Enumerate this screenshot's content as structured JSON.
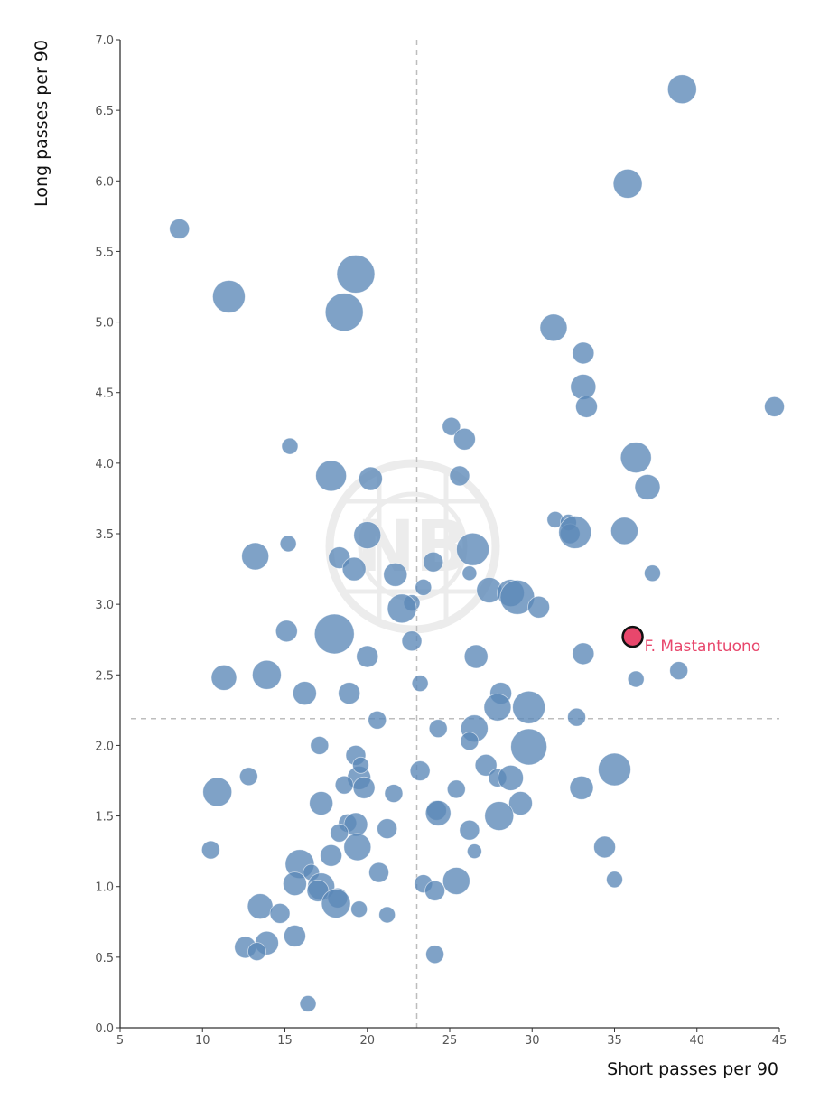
{
  "chart_data": {
    "type": "scatter",
    "xlabel": "Short passes per 90",
    "ylabel": "Long passes per 90",
    "xlim": [
      5,
      45
    ],
    "ylim": [
      0,
      7
    ],
    "xticks": [
      "5",
      "10",
      "15",
      "20",
      "25",
      "30",
      "35",
      "40",
      "45"
    ],
    "yticks": [
      "0.0",
      "0.5",
      "1.0",
      "1.5",
      "2.0",
      "2.5",
      "3.0",
      "3.5",
      "4.0",
      "4.5",
      "5.0",
      "5.5",
      "6.0",
      "6.5",
      "7.0"
    ],
    "reference_lines": {
      "x": 23,
      "y": 2.19
    },
    "watermark": "NB",
    "colors": {
      "points": "#5b88b7",
      "highlight": "#e8476c"
    },
    "highlight": {
      "label": "F. Mastantuono",
      "x": 36.1,
      "y": 2.77
    },
    "points": [
      {
        "x": 39.1,
        "y": 6.65,
        "size": 16
      },
      {
        "x": 35.8,
        "y": 5.98,
        "size": 16
      },
      {
        "x": 8.6,
        "y": 5.66,
        "size": 11
      },
      {
        "x": 11.6,
        "y": 5.18,
        "size": 18
      },
      {
        "x": 19.3,
        "y": 5.34,
        "size": 21
      },
      {
        "x": 18.6,
        "y": 5.07,
        "size": 21
      },
      {
        "x": 31.3,
        "y": 4.96,
        "size": 15
      },
      {
        "x": 33.1,
        "y": 4.78,
        "size": 12
      },
      {
        "x": 33.1,
        "y": 4.54,
        "size": 14
      },
      {
        "x": 33.3,
        "y": 4.4,
        "size": 12
      },
      {
        "x": 44.7,
        "y": 4.4,
        "size": 11
      },
      {
        "x": 25.1,
        "y": 4.26,
        "size": 10
      },
      {
        "x": 25.9,
        "y": 4.17,
        "size": 12
      },
      {
        "x": 15.3,
        "y": 4.12,
        "size": 9
      },
      {
        "x": 36.3,
        "y": 4.04,
        "size": 17
      },
      {
        "x": 17.8,
        "y": 3.91,
        "size": 17
      },
      {
        "x": 20.2,
        "y": 3.89,
        "size": 13
      },
      {
        "x": 25.6,
        "y": 3.91,
        "size": 11
      },
      {
        "x": 37.0,
        "y": 3.83,
        "size": 14
      },
      {
        "x": 31.4,
        "y": 3.6,
        "size": 9
      },
      {
        "x": 32.2,
        "y": 3.58,
        "size": 9
      },
      {
        "x": 32.3,
        "y": 3.5,
        "size": 11
      },
      {
        "x": 32.6,
        "y": 3.51,
        "size": 18
      },
      {
        "x": 35.6,
        "y": 3.52,
        "size": 15
      },
      {
        "x": 20.0,
        "y": 3.49,
        "size": 15
      },
      {
        "x": 15.2,
        "y": 3.43,
        "size": 9
      },
      {
        "x": 26.4,
        "y": 3.39,
        "size": 18
      },
      {
        "x": 13.2,
        "y": 3.34,
        "size": 15
      },
      {
        "x": 18.3,
        "y": 3.33,
        "size": 12
      },
      {
        "x": 19.2,
        "y": 3.25,
        "size": 13
      },
      {
        "x": 24.0,
        "y": 3.3,
        "size": 11
      },
      {
        "x": 21.7,
        "y": 3.21,
        "size": 13
      },
      {
        "x": 26.2,
        "y": 3.22,
        "size": 8
      },
      {
        "x": 37.3,
        "y": 3.22,
        "size": 9
      },
      {
        "x": 23.4,
        "y": 3.12,
        "size": 9
      },
      {
        "x": 27.4,
        "y": 3.1,
        "size": 14
      },
      {
        "x": 28.7,
        "y": 3.08,
        "size": 15
      },
      {
        "x": 29.1,
        "y": 3.05,
        "size": 19
      },
      {
        "x": 30.4,
        "y": 2.98,
        "size": 12
      },
      {
        "x": 22.7,
        "y": 3.01,
        "size": 9
      },
      {
        "x": 22.1,
        "y": 2.97,
        "size": 16
      },
      {
        "x": 15.1,
        "y": 2.81,
        "size": 12
      },
      {
        "x": 18.0,
        "y": 2.79,
        "size": 22
      },
      {
        "x": 22.7,
        "y": 2.74,
        "size": 11
      },
      {
        "x": 20.0,
        "y": 2.63,
        "size": 12
      },
      {
        "x": 26.6,
        "y": 2.63,
        "size": 13
      },
      {
        "x": 33.1,
        "y": 2.65,
        "size": 12
      },
      {
        "x": 11.3,
        "y": 2.48,
        "size": 14
      },
      {
        "x": 13.9,
        "y": 2.5,
        "size": 16
      },
      {
        "x": 36.3,
        "y": 2.47,
        "size": 9
      },
      {
        "x": 38.9,
        "y": 2.53,
        "size": 10
      },
      {
        "x": 23.2,
        "y": 2.44,
        "size": 9
      },
      {
        "x": 16.2,
        "y": 2.37,
        "size": 13
      },
      {
        "x": 18.9,
        "y": 2.37,
        "size": 12
      },
      {
        "x": 28.1,
        "y": 2.37,
        "size": 12
      },
      {
        "x": 27.9,
        "y": 2.27,
        "size": 15
      },
      {
        "x": 29.8,
        "y": 2.27,
        "size": 18
      },
      {
        "x": 32.7,
        "y": 2.2,
        "size": 10
      },
      {
        "x": 20.6,
        "y": 2.18,
        "size": 10
      },
      {
        "x": 24.3,
        "y": 2.12,
        "size": 10
      },
      {
        "x": 26.5,
        "y": 2.12,
        "size": 15
      },
      {
        "x": 26.2,
        "y": 2.03,
        "size": 10
      },
      {
        "x": 17.1,
        "y": 2.0,
        "size": 10
      },
      {
        "x": 29.8,
        "y": 1.99,
        "size": 20
      },
      {
        "x": 19.3,
        "y": 1.93,
        "size": 11
      },
      {
        "x": 27.2,
        "y": 1.86,
        "size": 12
      },
      {
        "x": 23.2,
        "y": 1.82,
        "size": 11
      },
      {
        "x": 35.0,
        "y": 1.83,
        "size": 18
      },
      {
        "x": 19.5,
        "y": 1.77,
        "size": 13
      },
      {
        "x": 19.6,
        "y": 1.86,
        "size": 9
      },
      {
        "x": 12.8,
        "y": 1.78,
        "size": 10
      },
      {
        "x": 27.9,
        "y": 1.77,
        "size": 10
      },
      {
        "x": 28.7,
        "y": 1.77,
        "size": 14
      },
      {
        "x": 18.6,
        "y": 1.72,
        "size": 10
      },
      {
        "x": 19.8,
        "y": 1.7,
        "size": 12
      },
      {
        "x": 25.4,
        "y": 1.69,
        "size": 10
      },
      {
        "x": 33.0,
        "y": 1.7,
        "size": 13
      },
      {
        "x": 10.9,
        "y": 1.67,
        "size": 16
      },
      {
        "x": 21.6,
        "y": 1.66,
        "size": 10
      },
      {
        "x": 17.2,
        "y": 1.59,
        "size": 13
      },
      {
        "x": 29.3,
        "y": 1.59,
        "size": 13
      },
      {
        "x": 24.2,
        "y": 1.54,
        "size": 11
      },
      {
        "x": 24.3,
        "y": 1.52,
        "size": 14
      },
      {
        "x": 28.0,
        "y": 1.5,
        "size": 16
      },
      {
        "x": 18.8,
        "y": 1.45,
        "size": 10
      },
      {
        "x": 19.3,
        "y": 1.44,
        "size": 13
      },
      {
        "x": 21.2,
        "y": 1.41,
        "size": 11
      },
      {
        "x": 26.2,
        "y": 1.4,
        "size": 11
      },
      {
        "x": 18.3,
        "y": 1.38,
        "size": 10
      },
      {
        "x": 19.4,
        "y": 1.28,
        "size": 15
      },
      {
        "x": 34.4,
        "y": 1.28,
        "size": 12
      },
      {
        "x": 10.5,
        "y": 1.26,
        "size": 10
      },
      {
        "x": 26.5,
        "y": 1.25,
        "size": 8
      },
      {
        "x": 17.8,
        "y": 1.22,
        "size": 12
      },
      {
        "x": 15.9,
        "y": 1.16,
        "size": 16
      },
      {
        "x": 16.6,
        "y": 1.1,
        "size": 9
      },
      {
        "x": 20.7,
        "y": 1.1,
        "size": 11
      },
      {
        "x": 35.0,
        "y": 1.05,
        "size": 9
      },
      {
        "x": 25.4,
        "y": 1.04,
        "size": 15
      },
      {
        "x": 23.4,
        "y": 1.02,
        "size": 10
      },
      {
        "x": 15.6,
        "y": 1.02,
        "size": 13
      },
      {
        "x": 17.2,
        "y": 1.0,
        "size": 15
      },
      {
        "x": 24.1,
        "y": 0.97,
        "size": 11
      },
      {
        "x": 17.0,
        "y": 0.97,
        "size": 12
      },
      {
        "x": 18.2,
        "y": 0.92,
        "size": 11
      },
      {
        "x": 18.1,
        "y": 0.88,
        "size": 16
      },
      {
        "x": 13.5,
        "y": 0.86,
        "size": 14
      },
      {
        "x": 19.5,
        "y": 0.84,
        "size": 9
      },
      {
        "x": 14.7,
        "y": 0.81,
        "size": 11
      },
      {
        "x": 21.2,
        "y": 0.8,
        "size": 9
      },
      {
        "x": 15.6,
        "y": 0.65,
        "size": 12
      },
      {
        "x": 13.9,
        "y": 0.6,
        "size": 13
      },
      {
        "x": 12.6,
        "y": 0.57,
        "size": 12
      },
      {
        "x": 13.3,
        "y": 0.54,
        "size": 10
      },
      {
        "x": 24.1,
        "y": 0.52,
        "size": 10
      },
      {
        "x": 16.4,
        "y": 0.17,
        "size": 9
      }
    ]
  }
}
